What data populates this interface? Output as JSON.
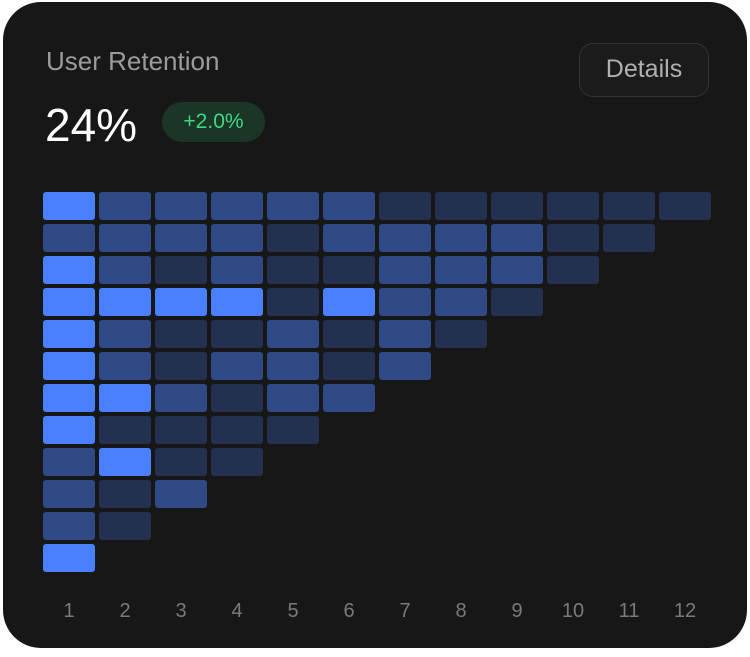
{
  "header": {
    "title": "User Retention",
    "value": "24%",
    "change": "+2.0%",
    "details_label": "Details"
  },
  "colors": {
    "high": "#4a80ff",
    "medium": "#2f4a87",
    "low": "#23304f",
    "background": "#171717",
    "positive": "#3fd882"
  },
  "chart_data": {
    "type": "heatmap",
    "x_tick_labels": [
      "1",
      "2",
      "3",
      "4",
      "5",
      "6",
      "7",
      "8",
      "9",
      "10",
      "11",
      "12"
    ],
    "intensity_levels": [
      "low",
      "medium",
      "high"
    ],
    "rows": [
      [
        2,
        1,
        1,
        1,
        1,
        1,
        0,
        0,
        0,
        0,
        0,
        0
      ],
      [
        1,
        1,
        1,
        1,
        0,
        1,
        1,
        1,
        1,
        0,
        0
      ],
      [
        2,
        1,
        0,
        1,
        0,
        0,
        1,
        1,
        1,
        0
      ],
      [
        2,
        2,
        2,
        2,
        0,
        2,
        1,
        1,
        0
      ],
      [
        2,
        1,
        0,
        0,
        1,
        0,
        1,
        0
      ],
      [
        2,
        1,
        0,
        1,
        1,
        0,
        1
      ],
      [
        2,
        2,
        1,
        0,
        1,
        1
      ],
      [
        2,
        0,
        0,
        0,
        0
      ],
      [
        1,
        2,
        0,
        0
      ],
      [
        1,
        0,
        1
      ],
      [
        1,
        0
      ],
      [
        2
      ]
    ]
  }
}
